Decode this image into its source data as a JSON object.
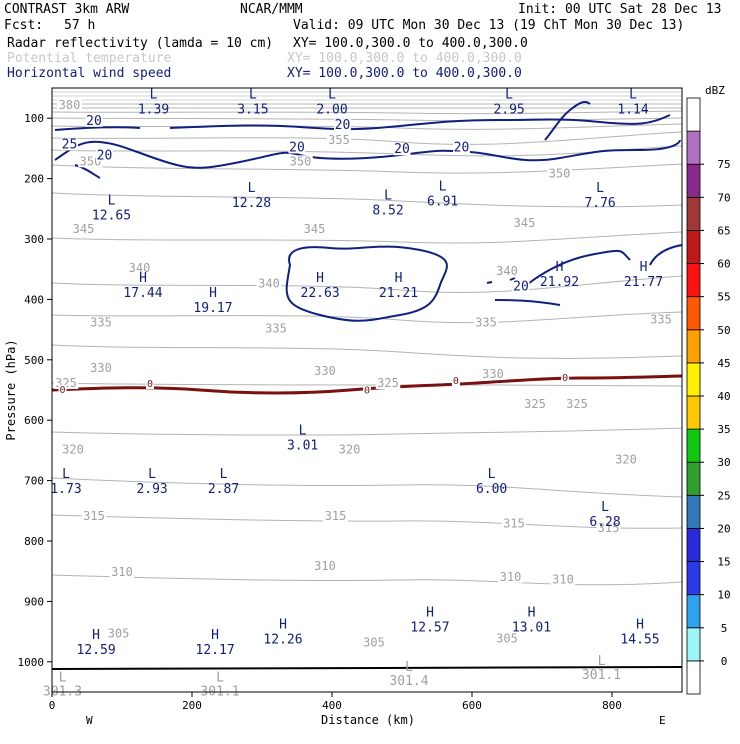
{
  "header": {
    "model": "CONTRAST  3km ARW",
    "center": "NCAR/MMM",
    "init": "Init: 00 UTC Sat 28 Dec 13",
    "fcst_label": "Fcst:",
    "fcst_value": "57 h",
    "valid": "Valid: 09 UTC Mon 30 Dec 13 (19 ChT Mon 30 Dec 13)",
    "fields": [
      {
        "name": "Radar reflectivity (lamda = 10 cm)",
        "xy": "XY= 100.0,300.0 to 400.0,300.0",
        "color": "#000000"
      },
      {
        "name": "Potential temperature",
        "xy": "XY= 100.0,300.0 to 400.0,300.0",
        "color": "#c8c8c8"
      },
      {
        "name": "Horizontal wind speed",
        "xy": "XY= 100.0,300.0 to 400.0,300.0",
        "color": "#102080"
      }
    ]
  },
  "chart_data": {
    "type": "cross-section contour",
    "xlabel": "Distance (km)",
    "ylabel": "Pressure (hPa)",
    "xlim": [
      0,
      900
    ],
    "ylim": [
      1050,
      50
    ],
    "x_ticks": [
      0,
      200,
      400,
      600,
      800
    ],
    "y_ticks": [
      100,
      200,
      300,
      400,
      500,
      600,
      700,
      800,
      900,
      1000
    ],
    "x_end_labels": {
      "left": "W",
      "right": "E"
    },
    "theta_contour_labels": [
      {
        "value": "380",
        "x": 25,
        "p": 85
      },
      {
        "value": "355",
        "x": 410,
        "p": 143
      },
      {
        "value": "350",
        "x": 55,
        "p": 178
      },
      {
        "value": "350",
        "x": 355,
        "p": 178
      },
      {
        "value": "350",
        "x": 725,
        "p": 198
      },
      {
        "value": "345",
        "x": 45,
        "p": 290
      },
      {
        "value": "345",
        "x": 375,
        "p": 290
      },
      {
        "value": "345",
        "x": 675,
        "p": 280
      },
      {
        "value": "340",
        "x": 125,
        "p": 355
      },
      {
        "value": "340",
        "x": 310,
        "p": 380
      },
      {
        "value": "340",
        "x": 650,
        "p": 360
      },
      {
        "value": "335",
        "x": 70,
        "p": 445
      },
      {
        "value": "335",
        "x": 320,
        "p": 455
      },
      {
        "value": "335",
        "x": 620,
        "p": 445
      },
      {
        "value": "335",
        "x": 870,
        "p": 440
      },
      {
        "value": "330",
        "x": 70,
        "p": 520
      },
      {
        "value": "330",
        "x": 390,
        "p": 525
      },
      {
        "value": "330",
        "x": 630,
        "p": 530
      },
      {
        "value": "325",
        "x": 20,
        "p": 545
      },
      {
        "value": "325",
        "x": 480,
        "p": 545
      },
      {
        "value": "325",
        "x": 690,
        "p": 580
      },
      {
        "value": "325",
        "x": 750,
        "p": 580
      },
      {
        "value": "320",
        "x": 30,
        "p": 655
      },
      {
        "value": "320",
        "x": 425,
        "p": 655
      },
      {
        "value": "320",
        "x": 820,
        "p": 672
      },
      {
        "value": "315",
        "x": 60,
        "p": 765
      },
      {
        "value": "315",
        "x": 405,
        "p": 765
      },
      {
        "value": "315",
        "x": 660,
        "p": 778
      },
      {
        "value": "315",
        "x": 795,
        "p": 785
      },
      {
        "value": "310",
        "x": 100,
        "p": 858
      },
      {
        "value": "310",
        "x": 390,
        "p": 848
      },
      {
        "value": "310",
        "x": 655,
        "p": 866
      },
      {
        "value": "310",
        "x": 730,
        "p": 870
      },
      {
        "value": "305",
        "x": 95,
        "p": 960
      },
      {
        "value": "305",
        "x": 460,
        "p": 975
      },
      {
        "value": "305",
        "x": 650,
        "p": 968
      }
    ],
    "wind_contour_labels": [
      {
        "value": "20",
        "x": 60,
        "p": 111
      },
      {
        "value": "20",
        "x": 415,
        "p": 118
      },
      {
        "value": "20",
        "x": 75,
        "p": 168
      },
      {
        "value": "20",
        "x": 350,
        "p": 155
      },
      {
        "value": "20",
        "x": 500,
        "p": 158
      },
      {
        "value": "20",
        "x": 585,
        "p": 155
      },
      {
        "value": "20",
        "x": 670,
        "p": 385
      },
      {
        "value": "25",
        "x": 25,
        "p": 150
      }
    ],
    "zero_contour_labels": [
      {
        "value": "0",
        "x": 15,
        "p": 555
      },
      {
        "value": "0",
        "x": 140,
        "p": 545
      },
      {
        "value": "0",
        "x": 450,
        "p": 556
      },
      {
        "value": "0",
        "x": 577,
        "p": 540
      },
      {
        "value": "0",
        "x": 733,
        "p": 535
      }
    ],
    "highs_lows_wind": [
      {
        "type": "L",
        "value": "1.39",
        "x": 145,
        "p": 67
      },
      {
        "type": "L",
        "value": "3.15",
        "x": 287,
        "p": 67
      },
      {
        "type": "L",
        "value": "2.00",
        "x": 400,
        "p": 67
      },
      {
        "type": "L",
        "value": "2.95",
        "x": 653,
        "p": 67
      },
      {
        "type": "L",
        "value": "1.14",
        "x": 830,
        "p": 67
      },
      {
        "type": "L",
        "value": "12.65",
        "x": 85,
        "p": 243
      },
      {
        "type": "L",
        "value": "12.28",
        "x": 285,
        "p": 222
      },
      {
        "type": "L",
        "value": "8.52",
        "x": 480,
        "p": 235
      },
      {
        "type": "L",
        "value": "6.91",
        "x": 558,
        "p": 220
      },
      {
        "type": "L",
        "value": "7.76",
        "x": 783,
        "p": 222
      },
      {
        "type": "H",
        "value": "17.44",
        "x": 130,
        "p": 371
      },
      {
        "type": "H",
        "value": "19.17",
        "x": 230,
        "p": 396
      },
      {
        "type": "H",
        "value": "22.63",
        "x": 383,
        "p": 371
      },
      {
        "type": "H",
        "value": "21.21",
        "x": 495,
        "p": 371
      },
      {
        "type": "H",
        "value": "21.92",
        "x": 725,
        "p": 353
      },
      {
        "type": "H",
        "value": "21.77",
        "x": 845,
        "p": 353
      },
      {
        "type": "L",
        "value": "3.01",
        "x": 358,
        "p": 624
      },
      {
        "type": "L",
        "value": "1.73",
        "x": 20,
        "p": 696
      },
      {
        "type": "L",
        "value": "2.93",
        "x": 143,
        "p": 696
      },
      {
        "type": "L",
        "value": "2.87",
        "x": 245,
        "p": 696
      },
      {
        "type": "L",
        "value": "6.00",
        "x": 628,
        "p": 696
      },
      {
        "type": "L",
        "value": "6.28",
        "x": 790,
        "p": 750
      },
      {
        "type": "H",
        "value": "12.57",
        "x": 540,
        "p": 925
      },
      {
        "type": "H",
        "value": "13.01",
        "x": 685,
        "p": 925
      },
      {
        "type": "H",
        "value": "12.59",
        "x": 63,
        "p": 962
      },
      {
        "type": "H",
        "value": "12.17",
        "x": 233,
        "p": 962
      },
      {
        "type": "H",
        "value": "12.26",
        "x": 330,
        "p": 945
      },
      {
        "type": "H",
        "value": "14.55",
        "x": 840,
        "p": 945
      }
    ],
    "highs_lows_theta": [
      {
        "type": "L",
        "value": "301.3",
        "x": 15,
        "p": 1033
      },
      {
        "type": "L",
        "value": "301.1",
        "x": 240,
        "p": 1033
      },
      {
        "type": "L",
        "value": "301.4",
        "x": 510,
        "p": 1015
      },
      {
        "type": "L",
        "value": "301.1",
        "x": 785,
        "p": 1005
      }
    ],
    "colorbar": {
      "unit": "dBZ",
      "levels": [
        "0",
        "5",
        "10",
        "15",
        "20",
        "25",
        "30",
        "35",
        "40",
        "45",
        "50",
        "55",
        "60",
        "65",
        "70",
        "75"
      ],
      "colors": [
        "#ffffff",
        "#9ef7f7",
        "#2ea2ee",
        "#2a3ae6",
        "#2a2ada",
        "#3078b8",
        "#30a030",
        "#10c810",
        "#ffc800",
        "#fff000",
        "#ffa000",
        "#ff5800",
        "#ff1010",
        "#c01818",
        "#a03838",
        "#8a2a8a",
        "#b070c0",
        "#ffffff"
      ]
    },
    "grid": false,
    "legend": "right colorbar"
  }
}
